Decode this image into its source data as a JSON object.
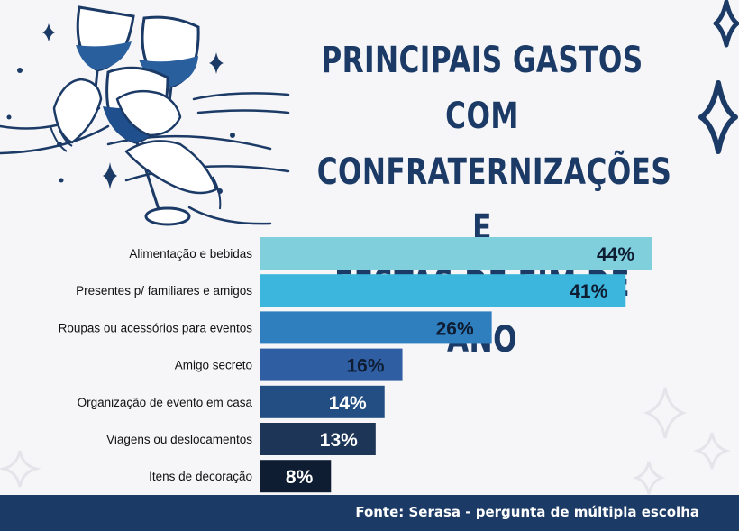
{
  "title": {
    "line1": "PRINCIPAIS GASTOS COM",
    "line2": "CONFRATERNIZAÇÕES E",
    "line3": "FESTAS DE FIM DE ANO"
  },
  "chart_data": {
    "type": "bar",
    "orientation": "horizontal",
    "title": "PRINCIPAIS GASTOS COM CONFRATERNIZAÇÕES E FESTAS DE FIM DE ANO",
    "categories": [
      "Alimentação e bebidas",
      "Presentes p/ familiares e amigos",
      "Roupas ou acessórios para eventos",
      "Amigo secreto",
      "Organização de evento em casa",
      "Viagens ou deslocamentos",
      "Itens de decoração"
    ],
    "values": [
      44,
      41,
      26,
      16,
      14,
      13,
      8
    ],
    "value_labels": [
      "44%",
      "41%",
      "26%",
      "16%",
      "14%",
      "13%",
      "8%"
    ],
    "unit": "%",
    "bar_colors": [
      "#7fcfdc",
      "#3cb6dc",
      "#2f7fbf",
      "#2f5ea3",
      "#234e83",
      "#1d3557",
      "#0f1d33"
    ],
    "label_colors": [
      "#0f1d33",
      "#0f1d33",
      "#0f1d33",
      "#0f1d33",
      "#ffffff",
      "#ffffff",
      "#ffffff"
    ],
    "xlim": [
      0,
      44
    ]
  },
  "footer": {
    "source": "Fonte:  Serasa - pergunta de múltipla escolha"
  },
  "colors": {
    "title": "#1c3a66",
    "footer_bg": "#1c3a66",
    "ink": "#1c3a66",
    "glass_wine": "#2a5f9e"
  },
  "icons": [
    "wine-glass-icon",
    "sparkle-icon"
  ]
}
